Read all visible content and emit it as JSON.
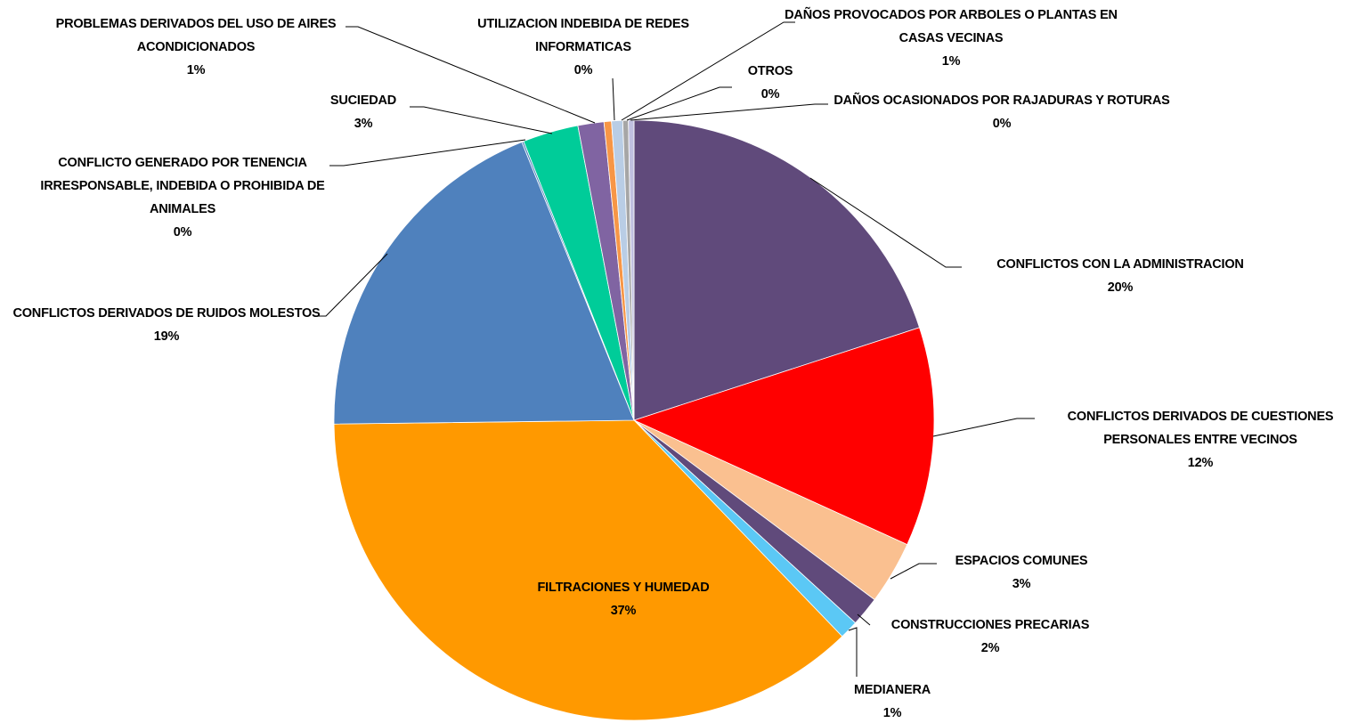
{
  "chart_data": {
    "type": "pie",
    "categories": [
      "CONFLICTOS CON LA ADMINISTRACION",
      "CONFLICTOS DERIVADOS  DE CUESTIONES PERSONALES ENTRE  VECINOS",
      "ESPACIOS COMUNES",
      "CONSTRUCCIONES PRECARIAS",
      "MEDIANERA",
      "FILTRACIONES Y HUMEDAD",
      "CONFLICTOS DERIVADOS  DE RUIDOS MOLESTOS",
      "CONFLICTO GENERADO  POR TENENCIA IRRESPONSABLE,  INDEBIDA  O PROHIBIDA DE ANIMALES",
      "SUCIEDAD",
      "PROBLEMAS DERIVADOS DEL USO DE AIRES ACONDICIONADOS",
      "UTILIZACION INDEBIDA DE REDES INFORMATICAS",
      "DAÑOS PROVOCADOS POR ARBOLES O PLANTAS EN CASAS VECINAS",
      "OTROS",
      "DAÑOS OCASIONADOS POR RAJADURAS  Y ROTURAS"
    ],
    "values": [
      20,
      11.8,
      3.4,
      1.6,
      1.0,
      37.0,
      19.1,
      0.1,
      3.0,
      1.4,
      0.4,
      0.6,
      0.3,
      0.3
    ],
    "value_labels": [
      "20%",
      "12%",
      "3%",
      "2%",
      "1%",
      "37%",
      "19%",
      "0%",
      "3%",
      "1%",
      "0%",
      "1%",
      "0%",
      "0%"
    ],
    "colors": [
      "#604a7b",
      "#ff0000",
      "#fac090",
      "#604a7b",
      "#5bc8f5",
      "#ff9900",
      "#4f81bd",
      "#4f81bd",
      "#00cc99",
      "#8064a2",
      "#f79646",
      "#b9cde5",
      "#a6a6a6",
      "#c0c0e0"
    ]
  }
}
